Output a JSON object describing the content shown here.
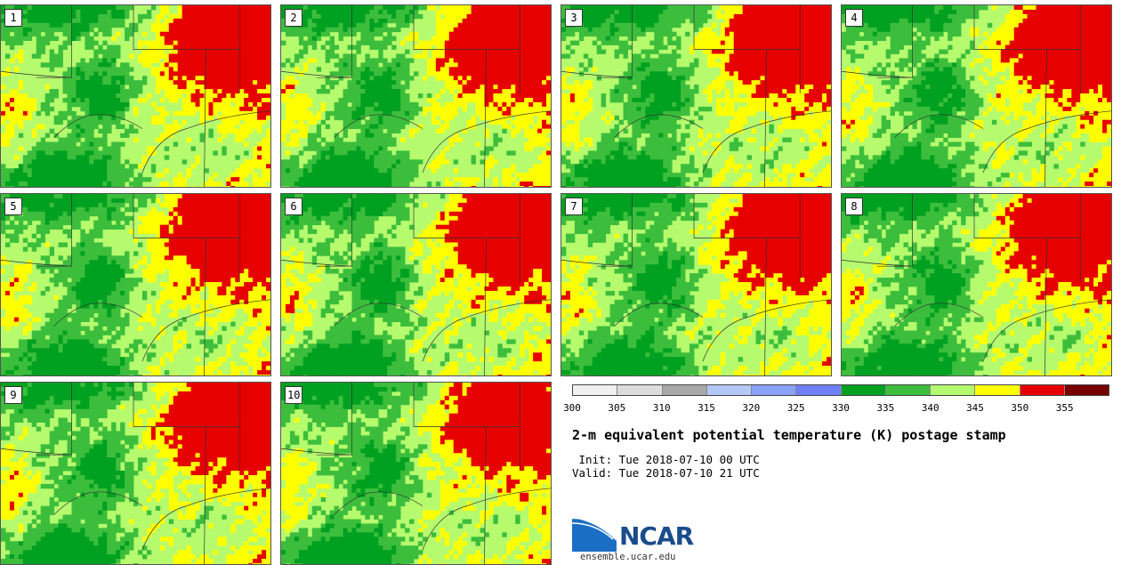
{
  "panels": [
    {
      "label": "1"
    },
    {
      "label": "2"
    },
    {
      "label": "3"
    },
    {
      "label": "4"
    },
    {
      "label": "5"
    },
    {
      "label": "6"
    },
    {
      "label": "7"
    },
    {
      "label": "8"
    },
    {
      "label": "9"
    },
    {
      "label": "10"
    }
  ],
  "colorbar": {
    "colors": [
      "#f0f0f0",
      "#dcdcdc",
      "#a8a8a8",
      "#b4c8f8",
      "#8aa2fa",
      "#7080fa",
      "#00a020",
      "#3cbe3c",
      "#b4fa6e",
      "#ffff00",
      "#e60000",
      "#780000"
    ],
    "ticks": [
      "300",
      "305",
      "310",
      "315",
      "320",
      "325",
      "330",
      "335",
      "340",
      "345",
      "350",
      "355"
    ]
  },
  "title": "2-m equivalent potential temperature (K) postage stamp",
  "init_line": " Init: Tue 2018-07-10 00 UTC",
  "valid_line": "Valid: Tue 2018-07-10 21 UTC",
  "logo_text": "NCAR",
  "site": "ensemble.ucar.edu"
}
